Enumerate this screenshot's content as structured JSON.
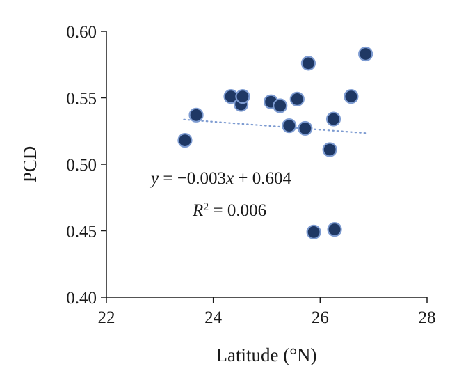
{
  "chart_data": {
    "type": "scatter",
    "xlabel": "Latitude (°N)",
    "ylabel": "PCD",
    "xlim": [
      22,
      28
    ],
    "ylim": [
      0.4,
      0.6
    ],
    "x_ticks": [
      22,
      24,
      26,
      28
    ],
    "y_ticks": [
      0.4,
      0.45,
      0.5,
      0.55,
      0.6
    ],
    "x_tick_labels": [
      "22",
      "24",
      "26",
      "28"
    ],
    "y_tick_labels": [
      "0.40",
      "0.45",
      "0.50",
      "0.55",
      "0.60"
    ],
    "grid": false,
    "points": [
      {
        "x": 23.47,
        "y": 0.518
      },
      {
        "x": 23.68,
        "y": 0.537
      },
      {
        "x": 24.33,
        "y": 0.551
      },
      {
        "x": 24.52,
        "y": 0.545
      },
      {
        "x": 24.55,
        "y": 0.551
      },
      {
        "x": 25.08,
        "y": 0.547
      },
      {
        "x": 25.25,
        "y": 0.544
      },
      {
        "x": 25.42,
        "y": 0.529
      },
      {
        "x": 25.57,
        "y": 0.549
      },
      {
        "x": 25.72,
        "y": 0.527
      },
      {
        "x": 25.78,
        "y": 0.576
      },
      {
        "x": 25.88,
        "y": 0.449
      },
      {
        "x": 26.18,
        "y": 0.511
      },
      {
        "x": 26.25,
        "y": 0.534
      },
      {
        "x": 26.27,
        "y": 0.451
      },
      {
        "x": 26.58,
        "y": 0.551
      },
      {
        "x": 26.85,
        "y": 0.583
      }
    ],
    "trendline": {
      "slope": -0.003,
      "intercept": 0.604,
      "x_start": 23.45,
      "x_end": 26.88,
      "style": "dotted"
    },
    "annotations": {
      "equation_y": "y",
      "equation_rest": " = −0.003",
      "equation_x": "x",
      "equation_tail": " + 0.604",
      "r2_R": "R",
      "r2_exp": "2",
      "r2_rest": " = 0.006"
    },
    "colors": {
      "marker_fill": "#1f3864",
      "marker_stroke": "#7d9bd1",
      "trendline": "#7d9bd1",
      "axis": "#1a1a1a"
    }
  }
}
